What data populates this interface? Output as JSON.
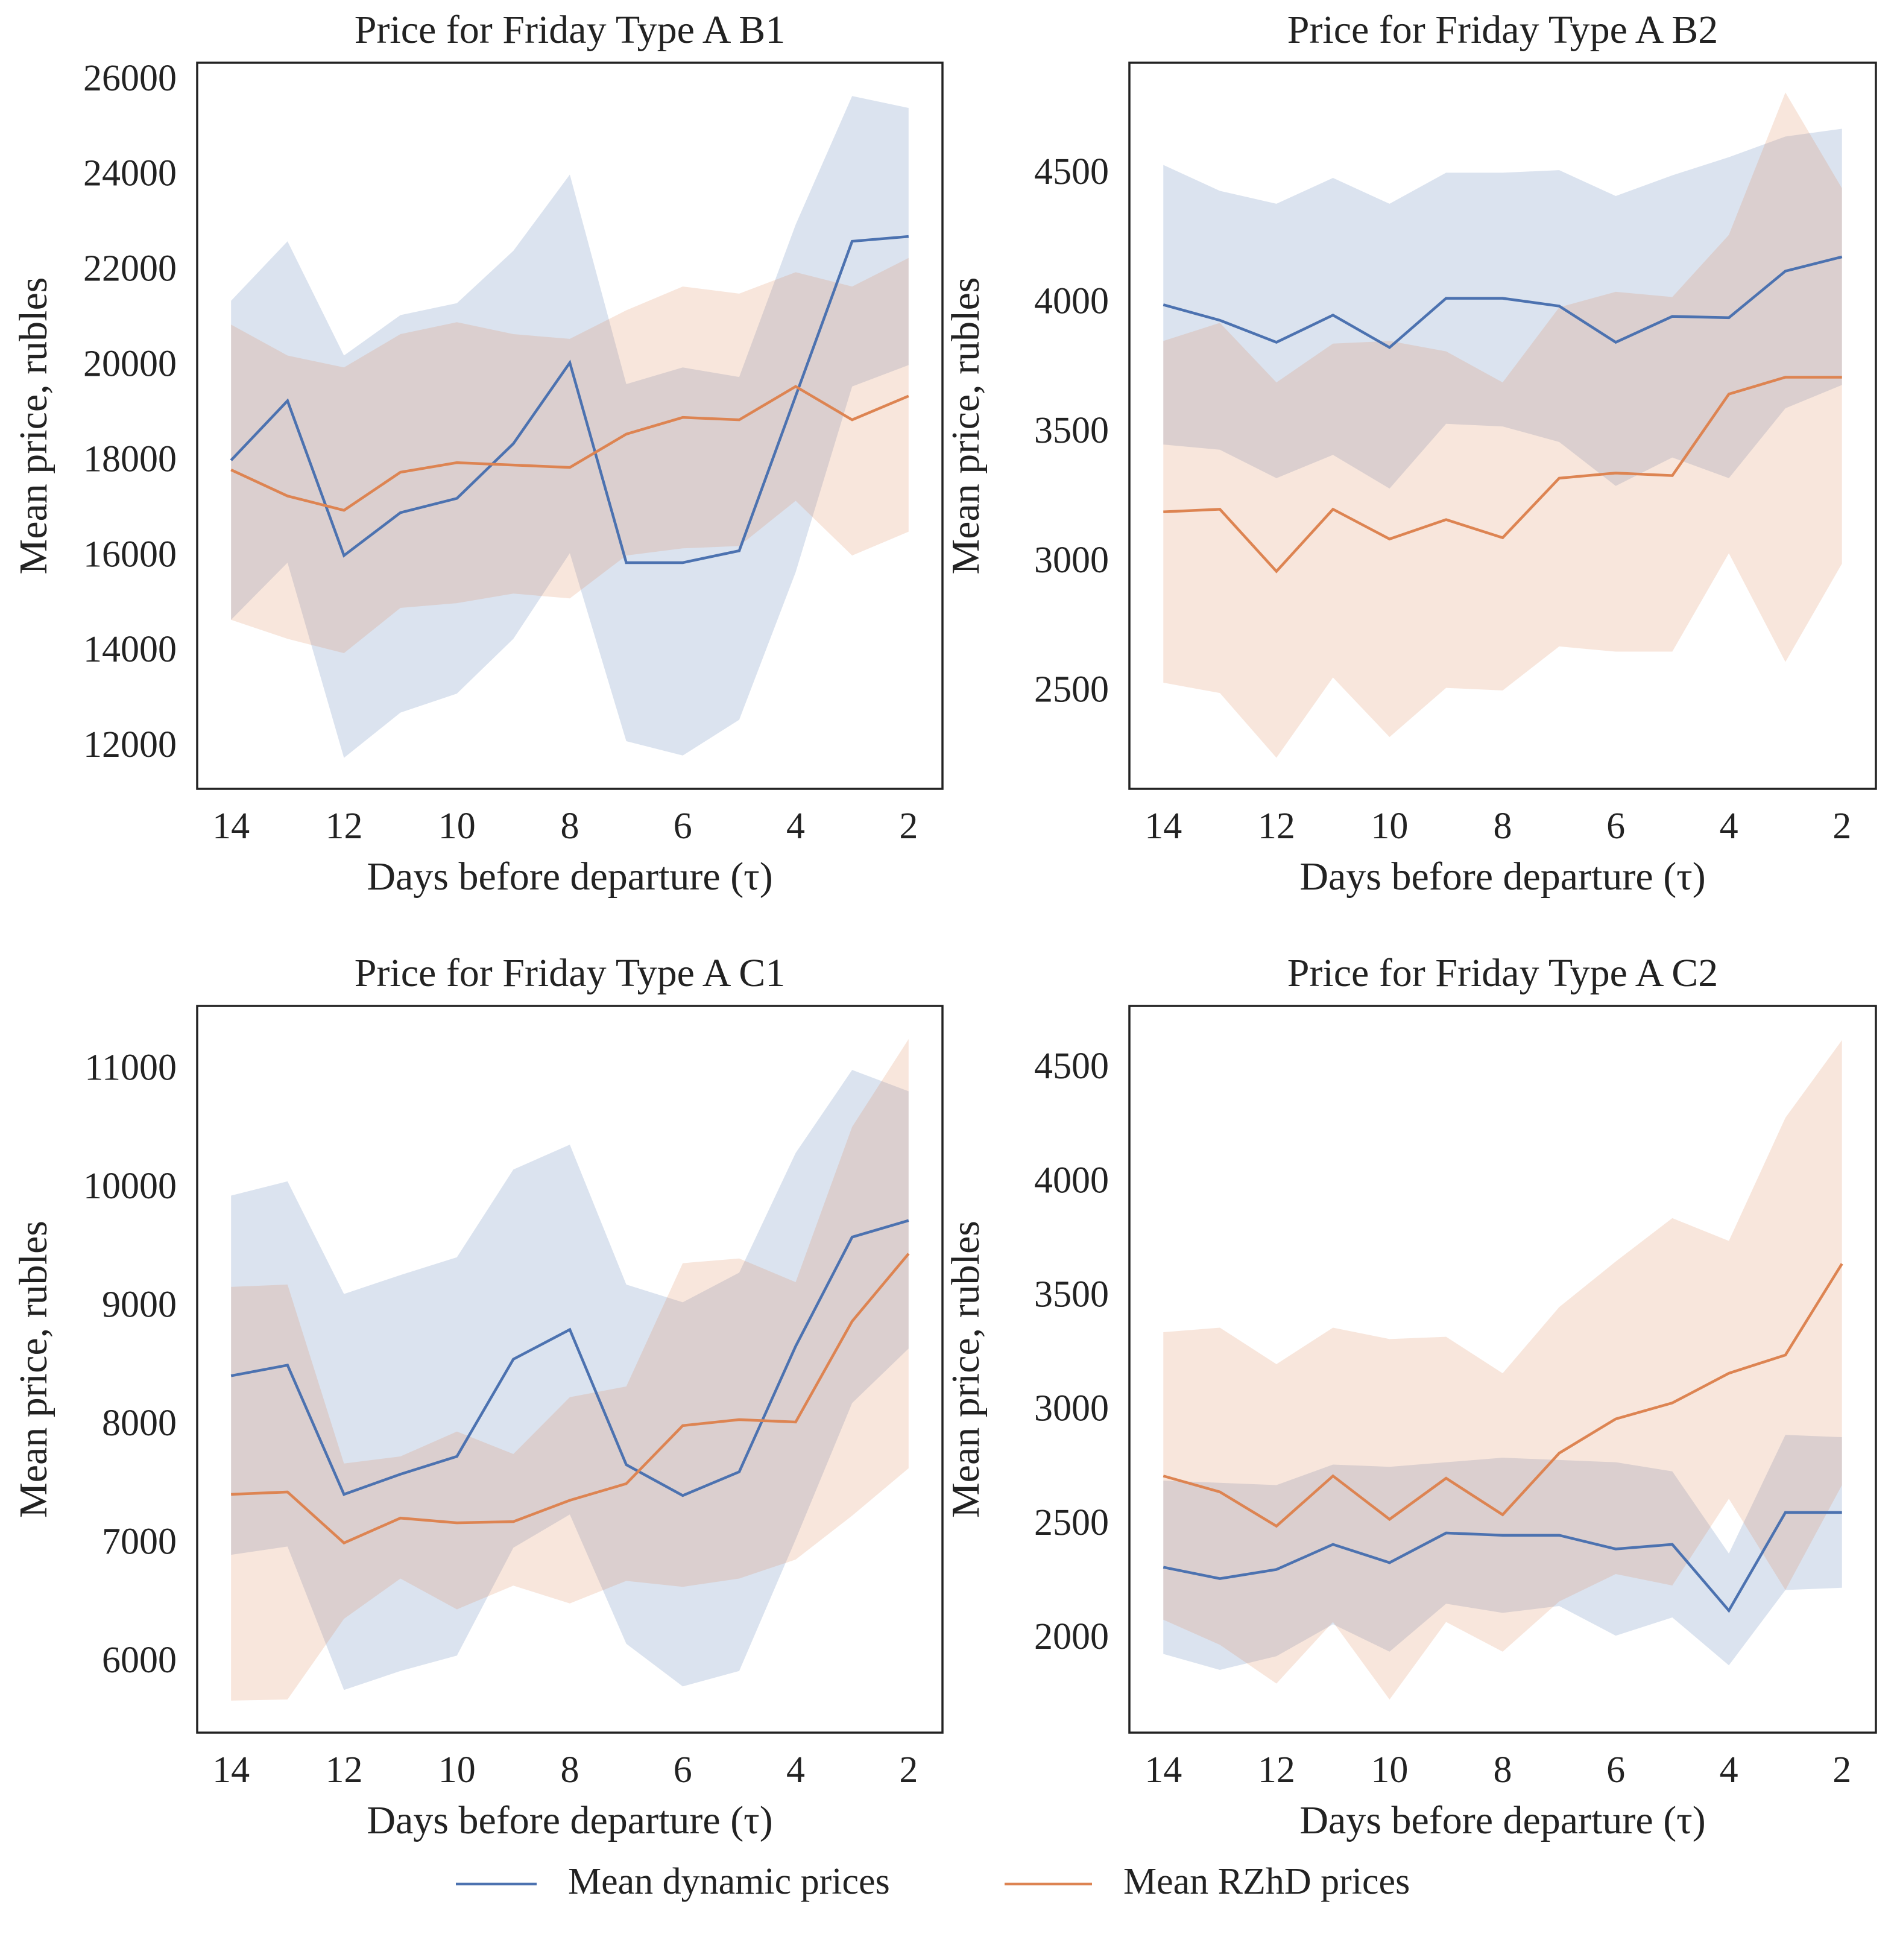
{
  "chart_data": [
    {
      "type": "line",
      "title": "Price for Friday Type A B1",
      "xlabel": "Days before departure (τ)",
      "ylabel": "Mean price, rubles",
      "x": [
        14,
        13,
        12,
        11,
        10,
        9,
        8,
        7,
        6,
        5,
        4,
        3,
        2
      ],
      "xlim": [
        14.6,
        1.4
      ],
      "xticks": [
        14,
        12,
        10,
        8,
        6,
        4,
        2
      ],
      "ylim": [
        11150,
        26400
      ],
      "yticks": [
        12000,
        14000,
        16000,
        18000,
        20000,
        22000,
        24000,
        26000
      ],
      "series": [
        {
          "name": "Mean dynamic prices",
          "color": "#4c72b0",
          "values": [
            18050,
            19300,
            16050,
            16950,
            17250,
            18400,
            20100,
            15900,
            15900,
            16150,
            19400,
            22650,
            22750
          ],
          "upper": [
            21400,
            22650,
            20250,
            21100,
            21350,
            22450,
            24050,
            19650,
            20000,
            19800,
            23000,
            25700,
            25450
          ],
          "lower": [
            14700,
            15900,
            11800,
            12750,
            13150,
            14300,
            16100,
            12150,
            11850,
            12600,
            15700,
            19600,
            20050
          ]
        },
        {
          "name": "Mean RZhD prices",
          "color": "#dd8452",
          "values": [
            17850,
            17300,
            17000,
            17800,
            18000,
            17950,
            17900,
            18600,
            18950,
            18900,
            19600,
            18900,
            19400
          ],
          "upper": [
            20900,
            20250,
            20000,
            20700,
            20950,
            20700,
            20600,
            21200,
            21700,
            21550,
            22000,
            21700,
            22300
          ],
          "lower": [
            14700,
            14300,
            14000,
            14950,
            15050,
            15250,
            15150,
            16050,
            16200,
            16250,
            17200,
            16050,
            16550
          ]
        }
      ]
    },
    {
      "type": "line",
      "title": "Price for Friday Type A B2",
      "xlabel": "Days before departure (τ)",
      "ylabel": "Mean price, rubles",
      "x": [
        14,
        13,
        12,
        11,
        10,
        9,
        8,
        7,
        6,
        5,
        4,
        3,
        2
      ],
      "xlim": [
        14.6,
        1.4
      ],
      "xticks": [
        14,
        12,
        10,
        8,
        6,
        4,
        2
      ],
      "ylim": [
        2130,
        4935
      ],
      "yticks": [
        2500,
        3000,
        3500,
        4000,
        4500
      ],
      "series": [
        {
          "name": "Mean dynamic prices",
          "color": "#4c72b0",
          "values": [
            4000,
            3940,
            3855,
            3960,
            3835,
            4025,
            4025,
            3995,
            3855,
            3955,
            3950,
            4130,
            4185
          ],
          "upper": [
            4540,
            4440,
            4390,
            4490,
            4390,
            4510,
            4510,
            4520,
            4420,
            4500,
            4570,
            4650,
            4680
          ],
          "lower": [
            3460,
            3440,
            3330,
            3420,
            3290,
            3540,
            3530,
            3470,
            3300,
            3410,
            3330,
            3600,
            3690
          ]
        },
        {
          "name": "Mean RZhD prices",
          "color": "#dd8452",
          "values": [
            3200,
            3210,
            2970,
            3210,
            3095,
            3170,
            3100,
            3330,
            3350,
            3340,
            3655,
            3720,
            3720
          ],
          "upper": [
            3860,
            3930,
            3700,
            3850,
            3860,
            3820,
            3700,
            3990,
            4050,
            4030,
            4270,
            4820,
            4450
          ],
          "lower": [
            2540,
            2500,
            2250,
            2560,
            2330,
            2520,
            2510,
            2680,
            2660,
            2660,
            3040,
            2620,
            3000
          ]
        }
      ]
    },
    {
      "type": "line",
      "title": "Price for Friday Type A C1",
      "xlabel": "Days before departure (τ)",
      "ylabel": "Mean price, rubles",
      "x": [
        14,
        13,
        12,
        11,
        10,
        9,
        8,
        7,
        6,
        5,
        4,
        3,
        2
      ],
      "xlim": [
        14.6,
        1.4
      ],
      "xticks": [
        14,
        12,
        10,
        8,
        6,
        4,
        2
      ],
      "ylim": [
        5420,
        11550
      ],
      "yticks": [
        6000,
        7000,
        8000,
        9000,
        10000,
        11000
      ],
      "series": [
        {
          "name": "Mean dynamic prices",
          "color": "#4c72b0",
          "values": [
            8430,
            8520,
            7430,
            7600,
            7750,
            8570,
            8820,
            7680,
            7420,
            7620,
            8680,
            9600,
            9740
          ],
          "upper": [
            9950,
            10070,
            9120,
            9280,
            9430,
            10170,
            10380,
            9200,
            9050,
            9300,
            10310,
            11010,
            10830
          ],
          "lower": [
            6920,
            6990,
            5780,
            5940,
            6070,
            6980,
            7260,
            6170,
            5810,
            5940,
            7050,
            8200,
            8660
          ]
        },
        {
          "name": "Mean RZhD prices",
          "color": "#dd8452",
          "values": [
            7430,
            7450,
            7020,
            7230,
            7190,
            7200,
            7380,
            7520,
            8010,
            8060,
            8040,
            8890,
            9460
          ],
          "upper": [
            9180,
            9200,
            7690,
            7750,
            7960,
            7770,
            8250,
            8340,
            9380,
            9420,
            9220,
            10530,
            11270
          ],
          "lower": [
            5690,
            5700,
            6380,
            6720,
            6460,
            6660,
            6510,
            6700,
            6650,
            6720,
            6880,
            7250,
            7650
          ]
        }
      ]
    },
    {
      "type": "line",
      "title": "Price for Friday Type A C2",
      "xlabel": "Days before departure (τ)",
      "ylabel": "Mean price, rubles",
      "x": [
        14,
        13,
        12,
        11,
        10,
        9,
        8,
        7,
        6,
        5,
        4,
        3,
        2
      ],
      "xlim": [
        14.6,
        1.4
      ],
      "xticks": [
        14,
        12,
        10,
        8,
        6,
        4,
        2
      ],
      "ylim": [
        1595,
        4780
      ],
      "yticks": [
        2000,
        2500,
        3000,
        3500,
        4000,
        4500
      ],
      "series": [
        {
          "name": "Mean dynamic prices",
          "color": "#4c72b0",
          "values": [
            2320,
            2270,
            2310,
            2420,
            2340,
            2470,
            2460,
            2460,
            2400,
            2420,
            2130,
            2560,
            2560
          ],
          "upper": [
            2700,
            2690,
            2680,
            2770,
            2760,
            2780,
            2800,
            2790,
            2780,
            2740,
            2380,
            2900,
            2890
          ],
          "lower": [
            1940,
            1870,
            1930,
            2070,
            1950,
            2160,
            2120,
            2150,
            2020,
            2100,
            1890,
            2220,
            2230
          ]
        },
        {
          "name": "Mean RZhD prices",
          "color": "#dd8452",
          "values": [
            2720,
            2650,
            2500,
            2720,
            2530,
            2710,
            2550,
            2820,
            2970,
            3040,
            3170,
            3250,
            3650
          ],
          "upper": [
            3350,
            3370,
            3210,
            3370,
            3320,
            3330,
            3170,
            3460,
            3660,
            3850,
            3750,
            4290,
            4630
          ],
          "lower": [
            2090,
            1980,
            1810,
            2080,
            1740,
            2080,
            1950,
            2170,
            2290,
            2240,
            2620,
            2220,
            2680
          ]
        }
      ]
    }
  ]
}
